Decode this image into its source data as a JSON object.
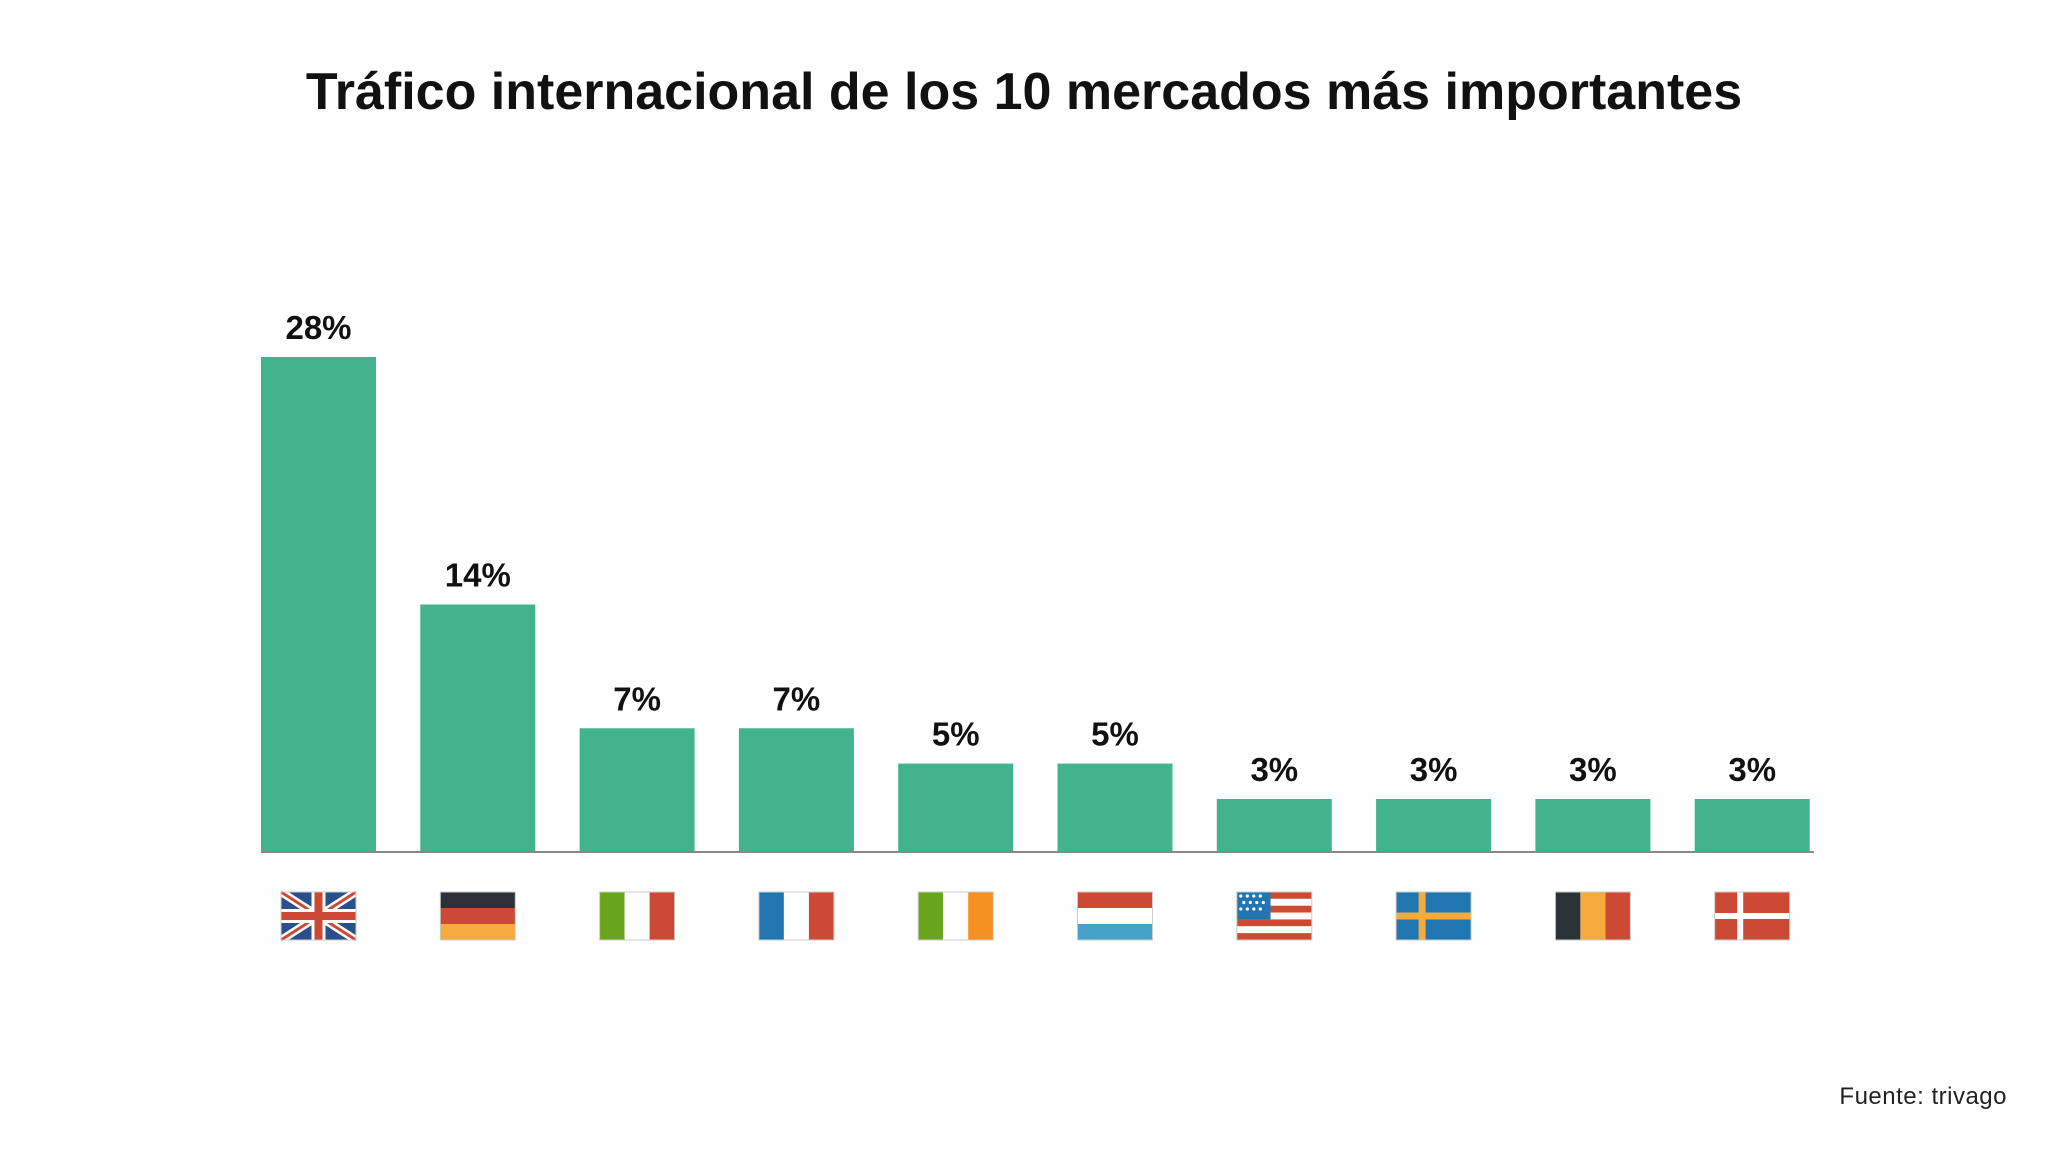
{
  "title": "Tráfico internacional de los 10 mercados más importantes",
  "source": "Fuente: trivago",
  "colors": {
    "bar": "#43b38d",
    "axis": "#888888",
    "text": "#111111"
  },
  "chart_data": {
    "type": "bar",
    "title": "Tráfico internacional de los 10 mercados más importantes",
    "xlabel": "",
    "ylabel": "",
    "unit": "%",
    "grid": false,
    "categories": [
      "uk-flag-icon",
      "germany-flag-icon",
      "italy-flag-icon",
      "france-flag-icon",
      "ireland-flag-icon",
      "netherlands-flag-icon",
      "usa-flag-icon",
      "sweden-flag-icon",
      "belgium-flag-icon",
      "denmark-flag-icon"
    ],
    "values": [
      28,
      14,
      7,
      7,
      5,
      5,
      3,
      3,
      3,
      3
    ],
    "labels": [
      "28%",
      "14%",
      "7%",
      "7%",
      "5%",
      "5%",
      "3%",
      "3%",
      "3%",
      "3%"
    ],
    "ylim": [
      0,
      28
    ]
  }
}
